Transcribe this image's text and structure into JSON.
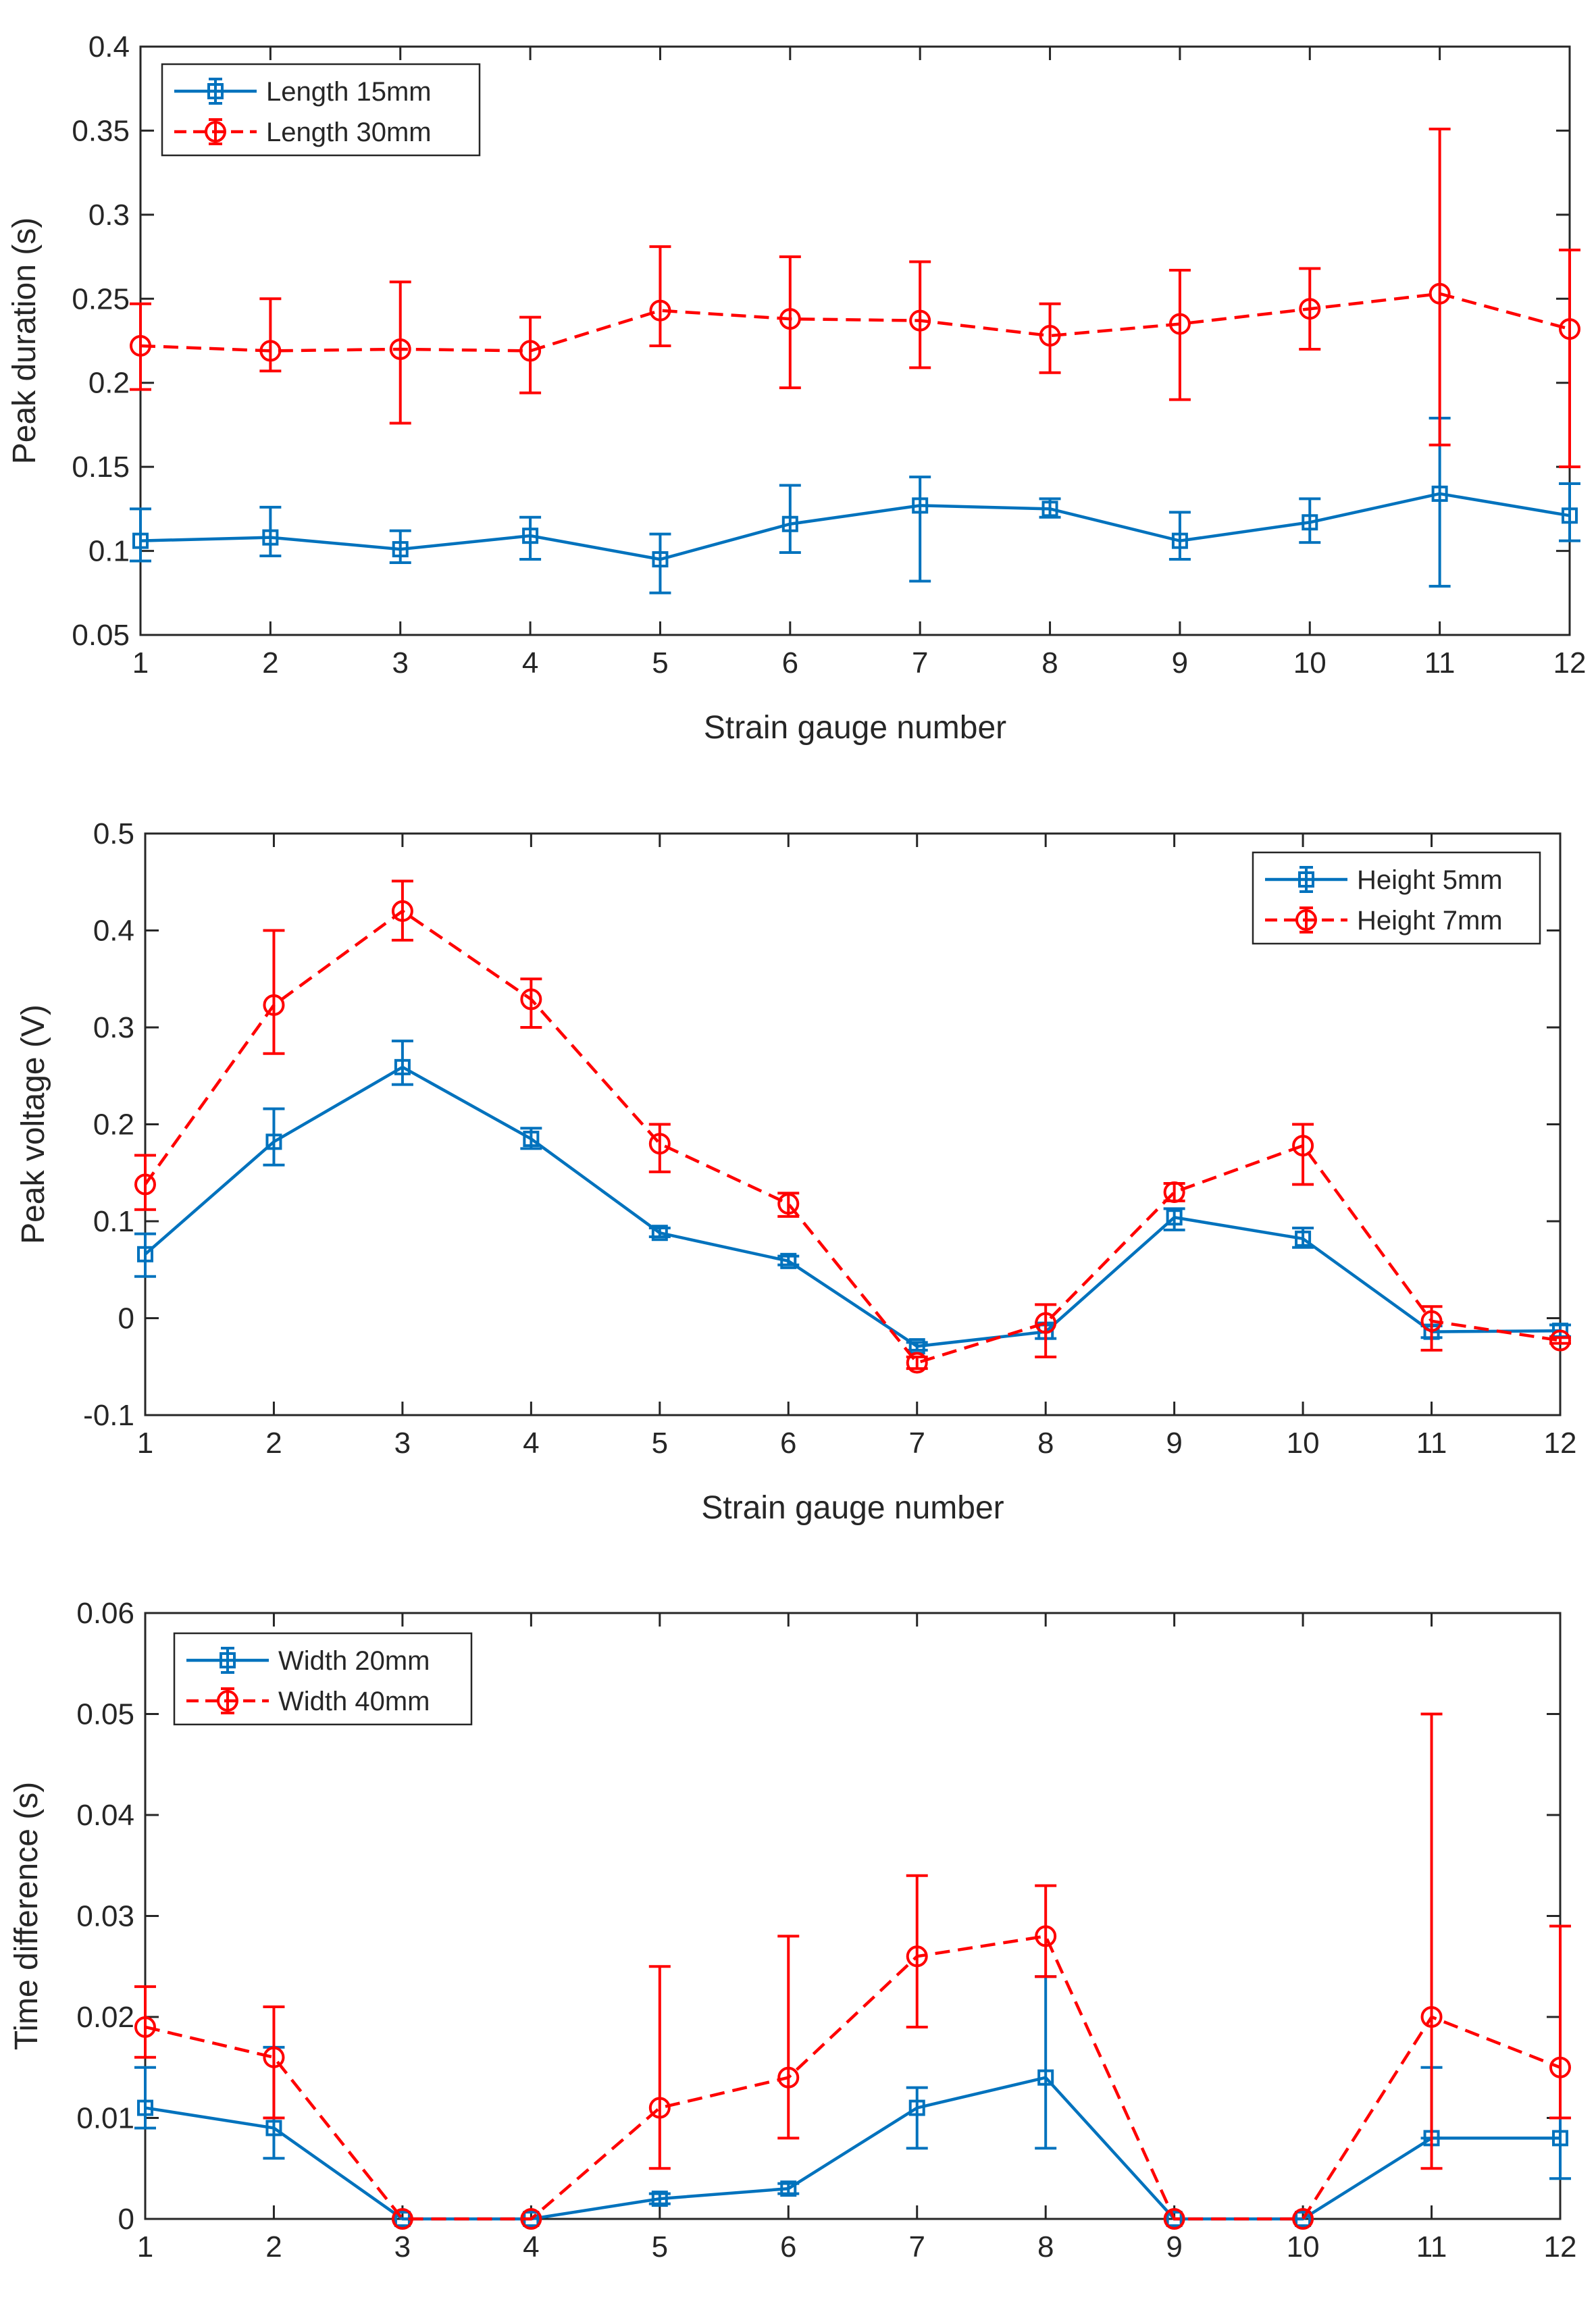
{
  "chart_data": [
    {
      "type": "line",
      "title": "",
      "xlabel": "Strain gauge number",
      "ylabel": "Peak duration (s)",
      "xlim": [
        1,
        12
      ],
      "ylim": [
        0.05,
        0.4
      ],
      "xticks": [
        1,
        2,
        3,
        4,
        5,
        6,
        7,
        8,
        9,
        10,
        11,
        12
      ],
      "yticks": [
        0.05,
        0.1,
        0.15,
        0.2,
        0.25,
        0.3,
        0.35,
        0.4
      ],
      "ytick_labels": [
        "0.05",
        "0.1",
        "0.15",
        "0.2",
        "0.25",
        "0.3",
        "0.35",
        "0.4"
      ],
      "grid": false,
      "legend_position": "top-left",
      "x": [
        1,
        2,
        3,
        4,
        5,
        6,
        7,
        8,
        9,
        10,
        11,
        12
      ],
      "series": [
        {
          "name": "Length 15mm",
          "color": "#0072BD",
          "line_style": "solid",
          "marker": "square",
          "values": [
            0.106,
            0.108,
            0.101,
            0.109,
            0.095,
            0.116,
            0.127,
            0.125,
            0.106,
            0.117,
            0.134,
            0.121
          ],
          "error_low": [
            0.094,
            0.097,
            0.093,
            0.095,
            0.075,
            0.099,
            0.082,
            0.12,
            0.095,
            0.105,
            0.079,
            0.106
          ],
          "error_high": [
            0.125,
            0.126,
            0.112,
            0.12,
            0.11,
            0.139,
            0.144,
            0.131,
            0.123,
            0.131,
            0.179,
            0.14
          ]
        },
        {
          "name": "Length 30mm",
          "color": "#FF0000",
          "line_style": "dashed",
          "marker": "circle",
          "values": [
            0.222,
            0.219,
            0.22,
            0.219,
            0.243,
            0.238,
            0.237,
            0.228,
            0.235,
            0.244,
            0.253,
            0.232
          ],
          "error_low": [
            0.196,
            0.207,
            0.176,
            0.194,
            0.222,
            0.197,
            0.209,
            0.206,
            0.19,
            0.22,
            0.163,
            0.15
          ],
          "error_high": [
            0.247,
            0.25,
            0.26,
            0.239,
            0.281,
            0.275,
            0.272,
            0.247,
            0.267,
            0.268,
            0.351,
            0.279
          ]
        }
      ]
    },
    {
      "type": "line",
      "title": "",
      "xlabel": "Strain gauge number",
      "ylabel": "Peak voltage (V)",
      "xlim": [
        1,
        12
      ],
      "ylim": [
        -0.1,
        0.5
      ],
      "xticks": [
        1,
        2,
        3,
        4,
        5,
        6,
        7,
        8,
        9,
        10,
        11,
        12
      ],
      "yticks": [
        -0.1,
        0,
        0.1,
        0.2,
        0.3,
        0.4,
        0.5
      ],
      "ytick_labels": [
        "-0.1",
        "0",
        "0.1",
        "0.2",
        "0.3",
        "0.4",
        "0.5"
      ],
      "grid": false,
      "legend_position": "top-right",
      "x": [
        1,
        2,
        3,
        4,
        5,
        6,
        7,
        8,
        9,
        10,
        11,
        12
      ],
      "series": [
        {
          "name": "Height 5mm",
          "color": "#0072BD",
          "line_style": "solid",
          "marker": "square",
          "values": [
            0.066,
            0.182,
            0.259,
            0.185,
            0.088,
            0.059,
            -0.029,
            -0.014,
            0.104,
            0.082,
            -0.014,
            -0.013
          ],
          "error_low": [
            0.043,
            0.158,
            0.241,
            0.175,
            0.084,
            0.055,
            -0.033,
            -0.021,
            0.091,
            0.073,
            -0.02,
            -0.019
          ],
          "error_high": [
            0.087,
            0.216,
            0.286,
            0.196,
            0.093,
            0.064,
            -0.025,
            -0.005,
            0.113,
            0.093,
            -0.008,
            -0.007
          ]
        },
        {
          "name": "Height 7mm",
          "color": "#FF0000",
          "line_style": "dashed",
          "marker": "circle",
          "values": [
            0.138,
            0.323,
            0.42,
            0.329,
            0.18,
            0.118,
            -0.046,
            -0.005,
            0.13,
            0.178,
            -0.003,
            -0.023
          ],
          "error_low": [
            0.112,
            0.273,
            0.39,
            0.3,
            0.151,
            0.105,
            -0.052,
            -0.04,
            0.121,
            0.138,
            -0.033,
            -0.026
          ],
          "error_high": [
            0.168,
            0.4,
            0.451,
            0.35,
            0.2,
            0.129,
            -0.04,
            0.014,
            0.139,
            0.2,
            0.012,
            -0.02
          ]
        }
      ]
    },
    {
      "type": "line",
      "title": "",
      "xlabel": "Strain gauge number",
      "ylabel": "Time difference (s)",
      "xlim": [
        1,
        12
      ],
      "ylim": [
        0,
        0.06
      ],
      "xticks": [
        1,
        2,
        3,
        4,
        5,
        6,
        7,
        8,
        9,
        10,
        11,
        12
      ],
      "yticks": [
        0,
        0.01,
        0.02,
        0.03,
        0.04,
        0.05,
        0.06
      ],
      "ytick_labels": [
        "0",
        "0.01",
        "0.02",
        "0.03",
        "0.04",
        "0.05",
        "0.06"
      ],
      "grid": false,
      "legend_position": "top-left",
      "x": [
        1,
        2,
        3,
        4,
        5,
        6,
        7,
        8,
        9,
        10,
        11,
        12
      ],
      "series": [
        {
          "name": "Width 20mm",
          "color": "#0072BD",
          "line_style": "solid",
          "marker": "square",
          "values": [
            0.011,
            0.009,
            0,
            0,
            0.002,
            0.003,
            0.011,
            0.014,
            0,
            0,
            0.008,
            0.008
          ],
          "error_low": [
            0.009,
            0.006,
            0,
            0,
            0.0015,
            0.0025,
            0.007,
            0.007,
            0,
            0,
            0.008,
            0.004
          ],
          "error_high": [
            0.015,
            0.017,
            0,
            0,
            0.0025,
            0.0035,
            0.013,
            0.024,
            0,
            0,
            0.015,
            0.01
          ]
        },
        {
          "name": "Width 40mm",
          "color": "#FF0000",
          "line_style": "dashed",
          "marker": "circle",
          "values": [
            0.019,
            0.016,
            0,
            0,
            0.011,
            0.014,
            0.026,
            0.028,
            0,
            0,
            0.02,
            0.015
          ],
          "error_low": [
            0.016,
            0.01,
            0,
            0,
            0.005,
            0.008,
            0.019,
            0.024,
            0,
            0,
            0.005,
            0.01
          ],
          "error_high": [
            0.023,
            0.021,
            0,
            0,
            0.025,
            0.028,
            0.034,
            0.033,
            0,
            0,
            0.05,
            0.029
          ]
        }
      ]
    }
  ]
}
